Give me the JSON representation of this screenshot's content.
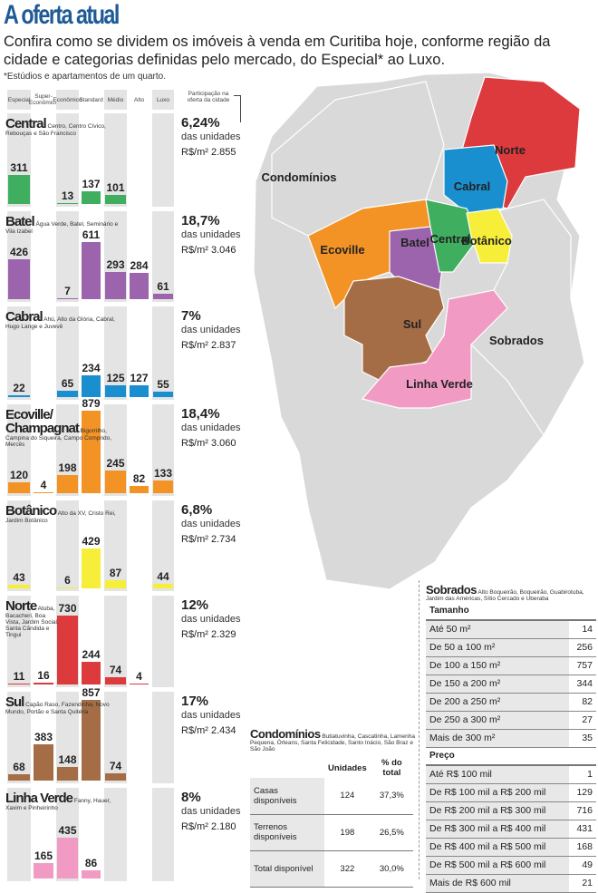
{
  "header": {
    "title": "A oferta atual",
    "subtitle": "Confira como se dividem os imóveis à venda em Curitiba hoje, conforme região da cidade e categorias definidas pelo mercado, do Especial* ao Luxo.",
    "footnote": "*Estúdios e apartamentos de um quarto."
  },
  "colors": {
    "Central": "#3fae5e",
    "Batel": "#9b64ad",
    "Cabral": "#1a8fcf",
    "Ecoville": "#f39325",
    "Botânico": "#f7ee3a",
    "Norte": "#dc3a3c",
    "Sul": "#a56d45",
    "Linha Verde": "#f19ac3",
    "base": "#d9d9d9",
    "title": "#1f5a97"
  },
  "chart_data": {
    "type": "bar",
    "categories": [
      "Especial",
      "Super-Econômico",
      "Econômico",
      "Standard",
      "Médio",
      "Alto",
      "Luxo"
    ],
    "participation_header": "Participação na oferta da cidade",
    "units_label": "das unidades",
    "regions": [
      {
        "key": "Central",
        "name": "Central",
        "neighborhoods": "Centro, Centro Cívico, Rebouças e São Francisco",
        "values": [
          311,
          null,
          13,
          137,
          101,
          null,
          null
        ],
        "share": "6,24%",
        "price": "R$/m² 2.855"
      },
      {
        "key": "Batel",
        "name": "Batel",
        "neighborhoods": "Água Verde, Batel, Seminário e Vila Izabel",
        "values": [
          426,
          null,
          7,
          611,
          293,
          284,
          61
        ],
        "share": "18,7%",
        "price": "R$/m² 3.046"
      },
      {
        "key": "Cabral",
        "name": "Cabral",
        "neighborhoods": "Ahú, Alto da Glória, Cabral, Hugo Lange e Juvevê",
        "values": [
          22,
          null,
          65,
          234,
          125,
          127,
          55
        ],
        "share": "7%",
        "price": "R$/m² 2.837"
      },
      {
        "key": "Ecoville",
        "name": "Ecoville/ Champagnat",
        "neighborhoods": "Bigorrilho, Campina do Siqueira, Campo Comprido, Mercês",
        "values": [
          120,
          4,
          198,
          879,
          245,
          82,
          133
        ],
        "share": "18,4%",
        "price": "R$/m² 3.060"
      },
      {
        "key": "Botânico",
        "name": "Botânico",
        "neighborhoods": "Alto da XV, Cristo Rei, Jardim Botânico",
        "values": [
          43,
          null,
          6,
          429,
          87,
          null,
          44
        ],
        "share": "6,8%",
        "price": "R$/m² 2.734"
      },
      {
        "key": "Norte",
        "name": "Norte",
        "neighborhoods": "Atuba, Bacacheri, Boa Vista, Jardim Social, Santa Cândida e Tingui",
        "values": [
          11,
          16,
          730,
          244,
          74,
          4,
          null
        ],
        "share": "12%",
        "price": "R$/m² 2.329"
      },
      {
        "key": "Sul",
        "name": "Sul",
        "neighborhoods": "Capão Raso, Fazendinha, Novo Mundo, Portão e Santa Quitéria",
        "values": [
          68,
          383,
          148,
          857,
          74,
          null,
          null
        ],
        "share": "17%",
        "price": "R$/m² 2.434"
      },
      {
        "key": "Linha Verde",
        "name": "Linha Verde",
        "neighborhoods": "Fanny, Hauer, Xaxim e Pinheirinho",
        "values": [
          null,
          165,
          435,
          86,
          null,
          null,
          null
        ],
        "share": "8%",
        "price": "R$/m² 2.180"
      }
    ]
  },
  "map": {
    "labels": [
      "Condomínios",
      "Ecoville",
      "Batel",
      "Central",
      "Cabral",
      "Norte",
      "Botânico",
      "Sul",
      "Sobrados",
      "Linha Verde"
    ]
  },
  "condominios": {
    "title": "Condomínios",
    "neighborhoods": "Butiatuvinha, Cascatinha, Lamenha Pequena, Órleans, Santa Felicidade, Santo Inácio, São Braz e São João",
    "headers": [
      "",
      "Unidades",
      "% do total"
    ],
    "rows": [
      [
        "Casas disponíveis",
        "124",
        "37,3%"
      ],
      [
        "Terrenos disponíveis",
        "198",
        "26,5%"
      ],
      [
        "Total disponível",
        "322",
        "30,0%"
      ]
    ]
  },
  "sobrados": {
    "title": "Sobrados",
    "neighborhoods": "Alto Boqueirão, Boqueirão, Guabirotuba, Jardim das Américas, Sítio Cercado e Uberaba",
    "size_header": "Tamanho",
    "size_rows": [
      [
        "Até 50 m²",
        "14"
      ],
      [
        "De 50 a 100 m²",
        "256"
      ],
      [
        "De 100 a 150 m²",
        "757"
      ],
      [
        "De 150 a 200 m²",
        "344"
      ],
      [
        "De 200 a 250 m²",
        "82"
      ],
      [
        "De 250 a 300 m²",
        "27"
      ],
      [
        "Mais de 300 m²",
        "35"
      ]
    ],
    "price_header": "Preço",
    "price_rows": [
      [
        "Até R$ 100 mil",
        "1"
      ],
      [
        "De R$ 100 mil a R$ 200 mil",
        "129"
      ],
      [
        "De R$ 200 mil a R$ 300 mil",
        "716"
      ],
      [
        "De R$ 300 mil a R$ 400 mil",
        "431"
      ],
      [
        "De R$ 400 mil a R$ 500 mil",
        "168"
      ],
      [
        "De R$ 500 mil a R$ 600 mil",
        "49"
      ],
      [
        "Mais de R$ 600 mil",
        "21"
      ]
    ]
  }
}
